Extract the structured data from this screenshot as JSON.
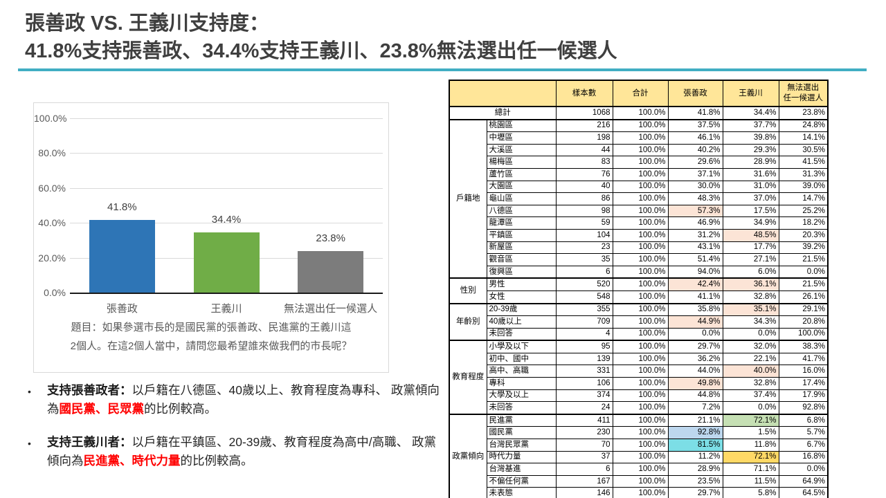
{
  "title": {
    "line1": "張善政 VS. 王義川支持度：",
    "line2": "41.8%支持張善政、34.4%支持王義川、23.8%無法選出任一候選人"
  },
  "colors": {
    "accent_rule": "#41aec3",
    "title_text": "#3f3f3f",
    "red_emphasis": "#ff0000",
    "table_header_bg": "#ffe699"
  },
  "chart_data": [
    {
      "type": "bar",
      "categories": [
        "張善政",
        "王義川",
        "無法選出任一候選人"
      ],
      "values": [
        41.8,
        34.4,
        23.8
      ],
      "value_labels": [
        "41.8%",
        "34.4%",
        "23.8%"
      ],
      "colors": [
        "#2e75b6",
        "#70ad47",
        "#7c7c7c"
      ],
      "ylim": [
        0,
        100
      ],
      "yticks": [
        {
          "label": "100.0%",
          "value": 100
        },
        {
          "label": "80.0%",
          "value": 80
        },
        {
          "label": "60.0%",
          "value": 60
        },
        {
          "label": "40.0%",
          "value": 40
        },
        {
          "label": "20.0%",
          "value": 20
        },
        {
          "label": "0.0%",
          "value": 0
        }
      ],
      "grid": true,
      "legend": "none",
      "caption_line1": "題目：如果參選市長的是國民黨的張善政、民進黨的王義川這",
      "caption_line2": "2個人。在這2個人當中，請問您最希望誰來做我們的市長呢？"
    },
    {
      "type": "table",
      "columns": [
        "樣本數",
        "合計",
        "張善政",
        "王義川",
        "無法選出\n任一候選人"
      ],
      "header_bg": "#ffe699",
      "highlight_colors": {
        "peach": "#fce4d6",
        "green": "#c6e0b4",
        "blue": "#bdd7ee",
        "cyan": "#7cdee6",
        "gold": "#ffd966"
      },
      "total_row": {
        "label": "總計",
        "cells": [
          "1068",
          "100.0%",
          "41.8%",
          "34.4%",
          "23.8%"
        ]
      },
      "sections": [
        {
          "group": "戶籍地",
          "rows": [
            {
              "label": "桃園區",
              "cells": [
                "216",
                "100.0%",
                "37.5%",
                "37.7%",
                "24.8%"
              ]
            },
            {
              "label": "中壢區",
              "cells": [
                "198",
                "100.0%",
                "46.1%",
                "39.8%",
                "14.1%"
              ]
            },
            {
              "label": "大溪區",
              "cells": [
                "44",
                "100.0%",
                "40.2%",
                "29.3%",
                "30.5%"
              ]
            },
            {
              "label": "楊梅區",
              "cells": [
                "83",
                "100.0%",
                "29.6%",
                "28.9%",
                "41.5%"
              ]
            },
            {
              "label": "蘆竹區",
              "cells": [
                "76",
                "100.0%",
                "37.1%",
                "31.6%",
                "31.3%"
              ]
            },
            {
              "label": "大園區",
              "cells": [
                "40",
                "100.0%",
                "30.0%",
                "31.0%",
                "39.0%"
              ]
            },
            {
              "label": "龜山區",
              "cells": [
                "86",
                "100.0%",
                "48.3%",
                "37.0%",
                "14.7%"
              ]
            },
            {
              "label": "八德區",
              "cells": [
                "98",
                "100.0%",
                "57.3%",
                "17.5%",
                "25.2%"
              ],
              "hl": [
                null,
                null,
                "peach",
                null,
                null
              ]
            },
            {
              "label": "龍潭區",
              "cells": [
                "59",
                "100.0%",
                "46.9%",
                "34.9%",
                "18.2%"
              ]
            },
            {
              "label": "平鎮區",
              "cells": [
                "104",
                "100.0%",
                "31.2%",
                "48.5%",
                "20.3%"
              ],
              "hl": [
                null,
                null,
                null,
                "peach",
                null
              ]
            },
            {
              "label": "新屋區",
              "cells": [
                "23",
                "100.0%",
                "43.1%",
                "17.7%",
                "39.2%"
              ]
            },
            {
              "label": "觀音區",
              "cells": [
                "35",
                "100.0%",
                "51.4%",
                "27.1%",
                "21.5%"
              ]
            },
            {
              "label": "復興區",
              "cells": [
                "6",
                "100.0%",
                "94.0%",
                "6.0%",
                "0.0%"
              ]
            }
          ]
        },
        {
          "group": "性別",
          "rows": [
            {
              "label": "男性",
              "cells": [
                "520",
                "100.0%",
                "42.4%",
                "36.1%",
                "21.5%"
              ],
              "hl": [
                null,
                null,
                "peach",
                "peach",
                null
              ]
            },
            {
              "label": "女性",
              "cells": [
                "548",
                "100.0%",
                "41.1%",
                "32.8%",
                "26.1%"
              ]
            }
          ]
        },
        {
          "group": "年齡別",
          "rows": [
            {
              "label": "20-39歲",
              "cells": [
                "355",
                "100.0%",
                "35.8%",
                "35.1%",
                "29.1%"
              ],
              "hl": [
                null,
                null,
                null,
                "peach",
                null
              ]
            },
            {
              "label": "40歲以上",
              "cells": [
                "709",
                "100.0%",
                "44.9%",
                "34.3%",
                "20.8%"
              ],
              "hl": [
                null,
                null,
                "peach",
                null,
                null
              ]
            },
            {
              "label": "未回答",
              "cells": [
                "4",
                "100.0%",
                "0.0%",
                "0.0%",
                "100.0%"
              ]
            }
          ]
        },
        {
          "group": "教育程度",
          "rows": [
            {
              "label": "小學及以下",
              "cells": [
                "95",
                "100.0%",
                "29.7%",
                "32.0%",
                "38.3%"
              ]
            },
            {
              "label": "初中、國中",
              "cells": [
                "139",
                "100.0%",
                "36.2%",
                "22.1%",
                "41.7%"
              ]
            },
            {
              "label": "高中、高職",
              "cells": [
                "331",
                "100.0%",
                "44.0%",
                "40.0%",
                "16.0%"
              ],
              "hl": [
                null,
                null,
                null,
                "peach",
                null
              ]
            },
            {
              "label": "專科",
              "cells": [
                "106",
                "100.0%",
                "49.8%",
                "32.8%",
                "17.4%"
              ],
              "hl": [
                null,
                null,
                "peach",
                null,
                null
              ]
            },
            {
              "label": "大學及以上",
              "cells": [
                "374",
                "100.0%",
                "44.8%",
                "37.4%",
                "17.9%"
              ]
            },
            {
              "label": "未回答",
              "cells": [
                "24",
                "100.0%",
                "7.2%",
                "0.0%",
                "92.8%"
              ]
            }
          ]
        },
        {
          "group": "政黨傾向",
          "rows": [
            {
              "label": "民進黨",
              "cells": [
                "411",
                "100.0%",
                "21.1%",
                "72.1%",
                "6.8%"
              ],
              "hl": [
                null,
                null,
                null,
                "green",
                null
              ]
            },
            {
              "label": "國民黨",
              "cells": [
                "230",
                "100.0%",
                "92.8%",
                "1.5%",
                "5.7%"
              ],
              "hl": [
                null,
                null,
                "blue",
                null,
                null
              ]
            },
            {
              "label": "台灣民眾黨",
              "cells": [
                "70",
                "100.0%",
                "81.5%",
                "11.8%",
                "6.7%"
              ],
              "hl": [
                null,
                null,
                "cyan",
                null,
                null
              ]
            },
            {
              "label": "時代力量",
              "cells": [
                "37",
                "100.0%",
                "11.2%",
                "72.1%",
                "16.8%"
              ],
              "hl": [
                null,
                null,
                null,
                "gold",
                null
              ]
            },
            {
              "label": "台灣基進",
              "cells": [
                "6",
                "100.0%",
                "28.9%",
                "71.1%",
                "0.0%"
              ]
            },
            {
              "label": "不偏任何黨",
              "cells": [
                "167",
                "100.0%",
                "23.5%",
                "11.5%",
                "64.9%"
              ]
            },
            {
              "label": "未表態",
              "cells": [
                "146",
                "100.0%",
                "29.7%",
                "5.8%",
                "64.5%"
              ]
            }
          ]
        }
      ]
    }
  ],
  "bullets": [
    {
      "parts": [
        {
          "text": "支持張善政者：",
          "style": "bold"
        },
        {
          "text": "以戶籍在八德區、40歲以上、教育程度為專科、 政黨傾向為",
          "style": "normal"
        },
        {
          "text": "國民黨、民眾黨",
          "style": "red"
        },
        {
          "text": "的比例較高。",
          "style": "normal"
        }
      ]
    },
    {
      "parts": [
        {
          "text": "支持王義川者：",
          "style": "bold"
        },
        {
          "text": "以戶籍在平鎮區、20-39歲、教育程度為高中/高職、 政黨傾向為",
          "style": "normal"
        },
        {
          "text": "民進黨、時代力量",
          "style": "red"
        },
        {
          "text": "的比例較高。",
          "style": "normal"
        }
      ]
    }
  ]
}
